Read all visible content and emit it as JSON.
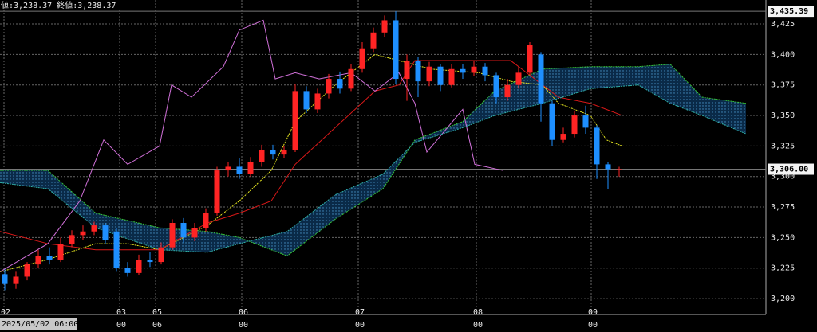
{
  "chart_data": {
    "type": "candlestick",
    "header": "値:3,238.37 終値:3,238.37",
    "cursor_label": "2025/05/02 06:00",
    "up_color": "#ff2424",
    "down_color": "#1e8fff",
    "x": [
      0.6,
      2.0,
      3.4,
      4.8,
      6.2,
      7.6,
      9.0,
      10.4,
      11.8,
      13.2,
      14.6,
      16.0,
      17.4,
      18.8,
      20.2,
      21.6,
      23.0,
      24.4,
      25.8,
      27.2,
      28.6,
      30.0,
      31.4,
      32.8,
      34.2,
      35.6,
      37.0,
      38.4,
      39.8,
      41.2,
      42.6,
      44.0,
      45.4,
      46.8,
      48.2,
      49.6,
      51.0,
      52.4,
      53.8,
      55.2,
      56.6,
      58.0,
      59.4,
      60.8,
      62.2,
      63.6,
      65.0,
      66.4,
      67.8,
      69.2,
      70.6,
      72.0,
      73.4,
      74.8,
      76.2,
      77.6
    ],
    "open": [
      3220,
      3212,
      3218,
      3228,
      3235,
      3232,
      3245,
      3252,
      3255,
      3260,
      3255,
      3225,
      3221,
      3232,
      3230,
      3242,
      3262,
      3250,
      3258,
      3270,
      3305,
      3308,
      3302,
      3312,
      3322,
      3318,
      3322,
      3370,
      3355,
      3368,
      3380,
      3372,
      3388,
      3405,
      3418,
      3428,
      3380,
      3395,
      3378,
      3390,
      3375,
      3388,
      3385,
      3390,
      3383,
      3365,
      3375,
      3385,
      3400,
      3360,
      3330,
      3335,
      3350,
      3340,
      3310,
      3306
    ],
    "high": [
      3224,
      3222,
      3230,
      3240,
      3242,
      3250,
      3256,
      3260,
      3263,
      3262,
      3258,
      3230,
      3236,
      3238,
      3246,
      3265,
      3266,
      3262,
      3274,
      3308,
      3312,
      3315,
      3316,
      3326,
      3326,
      3325,
      3376,
      3374,
      3372,
      3384,
      3386,
      3392,
      3410,
      3422,
      3432,
      3435.39,
      3400,
      3398,
      3394,
      3392,
      3392,
      3392,
      3395,
      3393,
      3385,
      3380,
      3390,
      3410,
      3402,
      3362,
      3340,
      3354,
      3358,
      3342,
      3312,
      3308
    ],
    "low": [
      3207,
      3208,
      3215,
      3225,
      3228,
      3230,
      3242,
      3248,
      3252,
      3245,
      3222,
      3218,
      3219,
      3226,
      3228,
      3240,
      3246,
      3247,
      3255,
      3268,
      3300,
      3298,
      3300,
      3308,
      3314,
      3315,
      3320,
      3352,
      3352,
      3364,
      3368,
      3370,
      3385,
      3402,
      3414,
      3376,
      3362,
      3365,
      3374,
      3370,
      3373,
      3380,
      3382,
      3378,
      3360,
      3362,
      3372,
      3382,
      3345,
      3325,
      3328,
      3332,
      3335,
      3298,
      3290,
      3300
    ],
    "close": [
      3212,
      3218,
      3228,
      3235,
      3232,
      3245,
      3252,
      3255,
      3260,
      3248,
      3225,
      3221,
      3232,
      3230,
      3242,
      3262,
      3250,
      3258,
      3270,
      3305,
      3308,
      3302,
      3312,
      3322,
      3318,
      3322,
      3370,
      3355,
      3368,
      3380,
      3372,
      3388,
      3405,
      3418,
      3428,
      3380,
      3395,
      3378,
      3390,
      3375,
      3388,
      3385,
      3390,
      3383,
      3365,
      3375,
      3385,
      3408,
      3360,
      3330,
      3335,
      3350,
      3340,
      3310,
      3306,
      3306
    ],
    "overlays": [
      {
        "color": "#e8e820",
        "dash": true,
        "x": [
          0,
          6,
          12,
          16,
          20,
          26,
          30,
          34,
          37,
          42,
          47,
          50,
          54,
          60,
          64,
          68,
          70,
          74,
          76,
          78
        ],
        "values": [
          3222,
          3232,
          3245,
          3245,
          3240,
          3260,
          3280,
          3305,
          3345,
          3375,
          3400,
          3395,
          3388,
          3385,
          3378,
          3375,
          3360,
          3350,
          3330,
          3325
        ]
      },
      {
        "color": "#d81818",
        "dash": false,
        "x": [
          0,
          6,
          12,
          20,
          26,
          30,
          34,
          37,
          42,
          47,
          50,
          52,
          64,
          66,
          70,
          74,
          78
        ],
        "values": [
          3255,
          3245,
          3240,
          3240,
          3262,
          3270,
          3280,
          3310,
          3340,
          3370,
          3375,
          3395,
          3395,
          3385,
          3365,
          3360,
          3350
        ]
      },
      {
        "color": "#d070d8",
        "dash": false,
        "x": [
          0,
          6,
          10,
          13,
          16,
          20,
          21.5,
          24,
          28,
          30,
          33,
          34.5,
          37,
          40,
          44,
          47,
          50,
          52,
          53.5,
          58,
          59.5,
          63
        ],
        "values": [
          3222,
          3245,
          3280,
          3330,
          3310,
          3325,
          3375,
          3365,
          3390,
          3420,
          3428,
          3380,
          3385,
          3380,
          3385,
          3370,
          3385,
          3360,
          3320,
          3355,
          3310,
          3305
        ]
      },
      {
        "color": "#38c838",
        "dash": true,
        "x": [
          0,
          6,
          12,
          20,
          26,
          30,
          36,
          42,
          48,
          52,
          58,
          62,
          68,
          74,
          80,
          84,
          88,
          93.5
        ],
        "values": [
          3305,
          3305,
          3270,
          3258,
          3255,
          3250,
          3235,
          3265,
          3290,
          3330,
          3345,
          3370,
          3388,
          3390,
          3390,
          3392,
          3365,
          3360
        ]
      },
      {
        "color": "#30b0a8",
        "dash": true,
        "x": [
          0,
          6,
          12,
          20,
          26,
          30,
          36,
          42,
          48,
          52,
          58,
          62,
          68,
          74,
          80,
          84,
          88,
          93.5
        ],
        "values": [
          3295,
          3290,
          3258,
          3240,
          3238,
          3245,
          3255,
          3285,
          3302,
          3328,
          3340,
          3350,
          3360,
          3372,
          3375,
          3360,
          3350,
          3335
        ]
      }
    ],
    "cloud": [
      3,
      4
    ],
    "xlim": [
      0,
      96
    ],
    "ylim": [
      3187,
      3444.6
    ],
    "yticks": [
      {
        "value": 3200,
        "label": "3,200"
      },
      {
        "value": 3225,
        "label": "3,225"
      },
      {
        "value": 3250,
        "label": "3,250"
      },
      {
        "value": 3275,
        "label": "3,275"
      },
      {
        "value": 3300,
        "label": "3,300"
      },
      {
        "value": 3325,
        "label": "3,325"
      },
      {
        "value": 3350,
        "label": "3,350"
      },
      {
        "value": 3375,
        "label": "3,375"
      },
      {
        "value": 3400,
        "label": "3,400"
      },
      {
        "value": 3425,
        "label": "3,425"
      }
    ],
    "xticks": [
      {
        "value": 0.5,
        "label": "02"
      },
      {
        "value": 15,
        "label": "03"
      },
      {
        "value": 19.5,
        "label": "05"
      },
      {
        "value": 30.3,
        "label": "06"
      },
      {
        "value": 44.9,
        "label": "07"
      },
      {
        "value": 59.7,
        "label": "08"
      },
      {
        "value": 74.1,
        "label": "09"
      }
    ],
    "xtick_sublabels": [
      null,
      "00",
      "06",
      "00",
      "00",
      "00",
      "00"
    ],
    "price_labels": [
      {
        "value": 3435.39,
        "label": "3,435.39"
      },
      {
        "value": 3306,
        "label": "3,306.00"
      }
    ],
    "grid": true
  }
}
